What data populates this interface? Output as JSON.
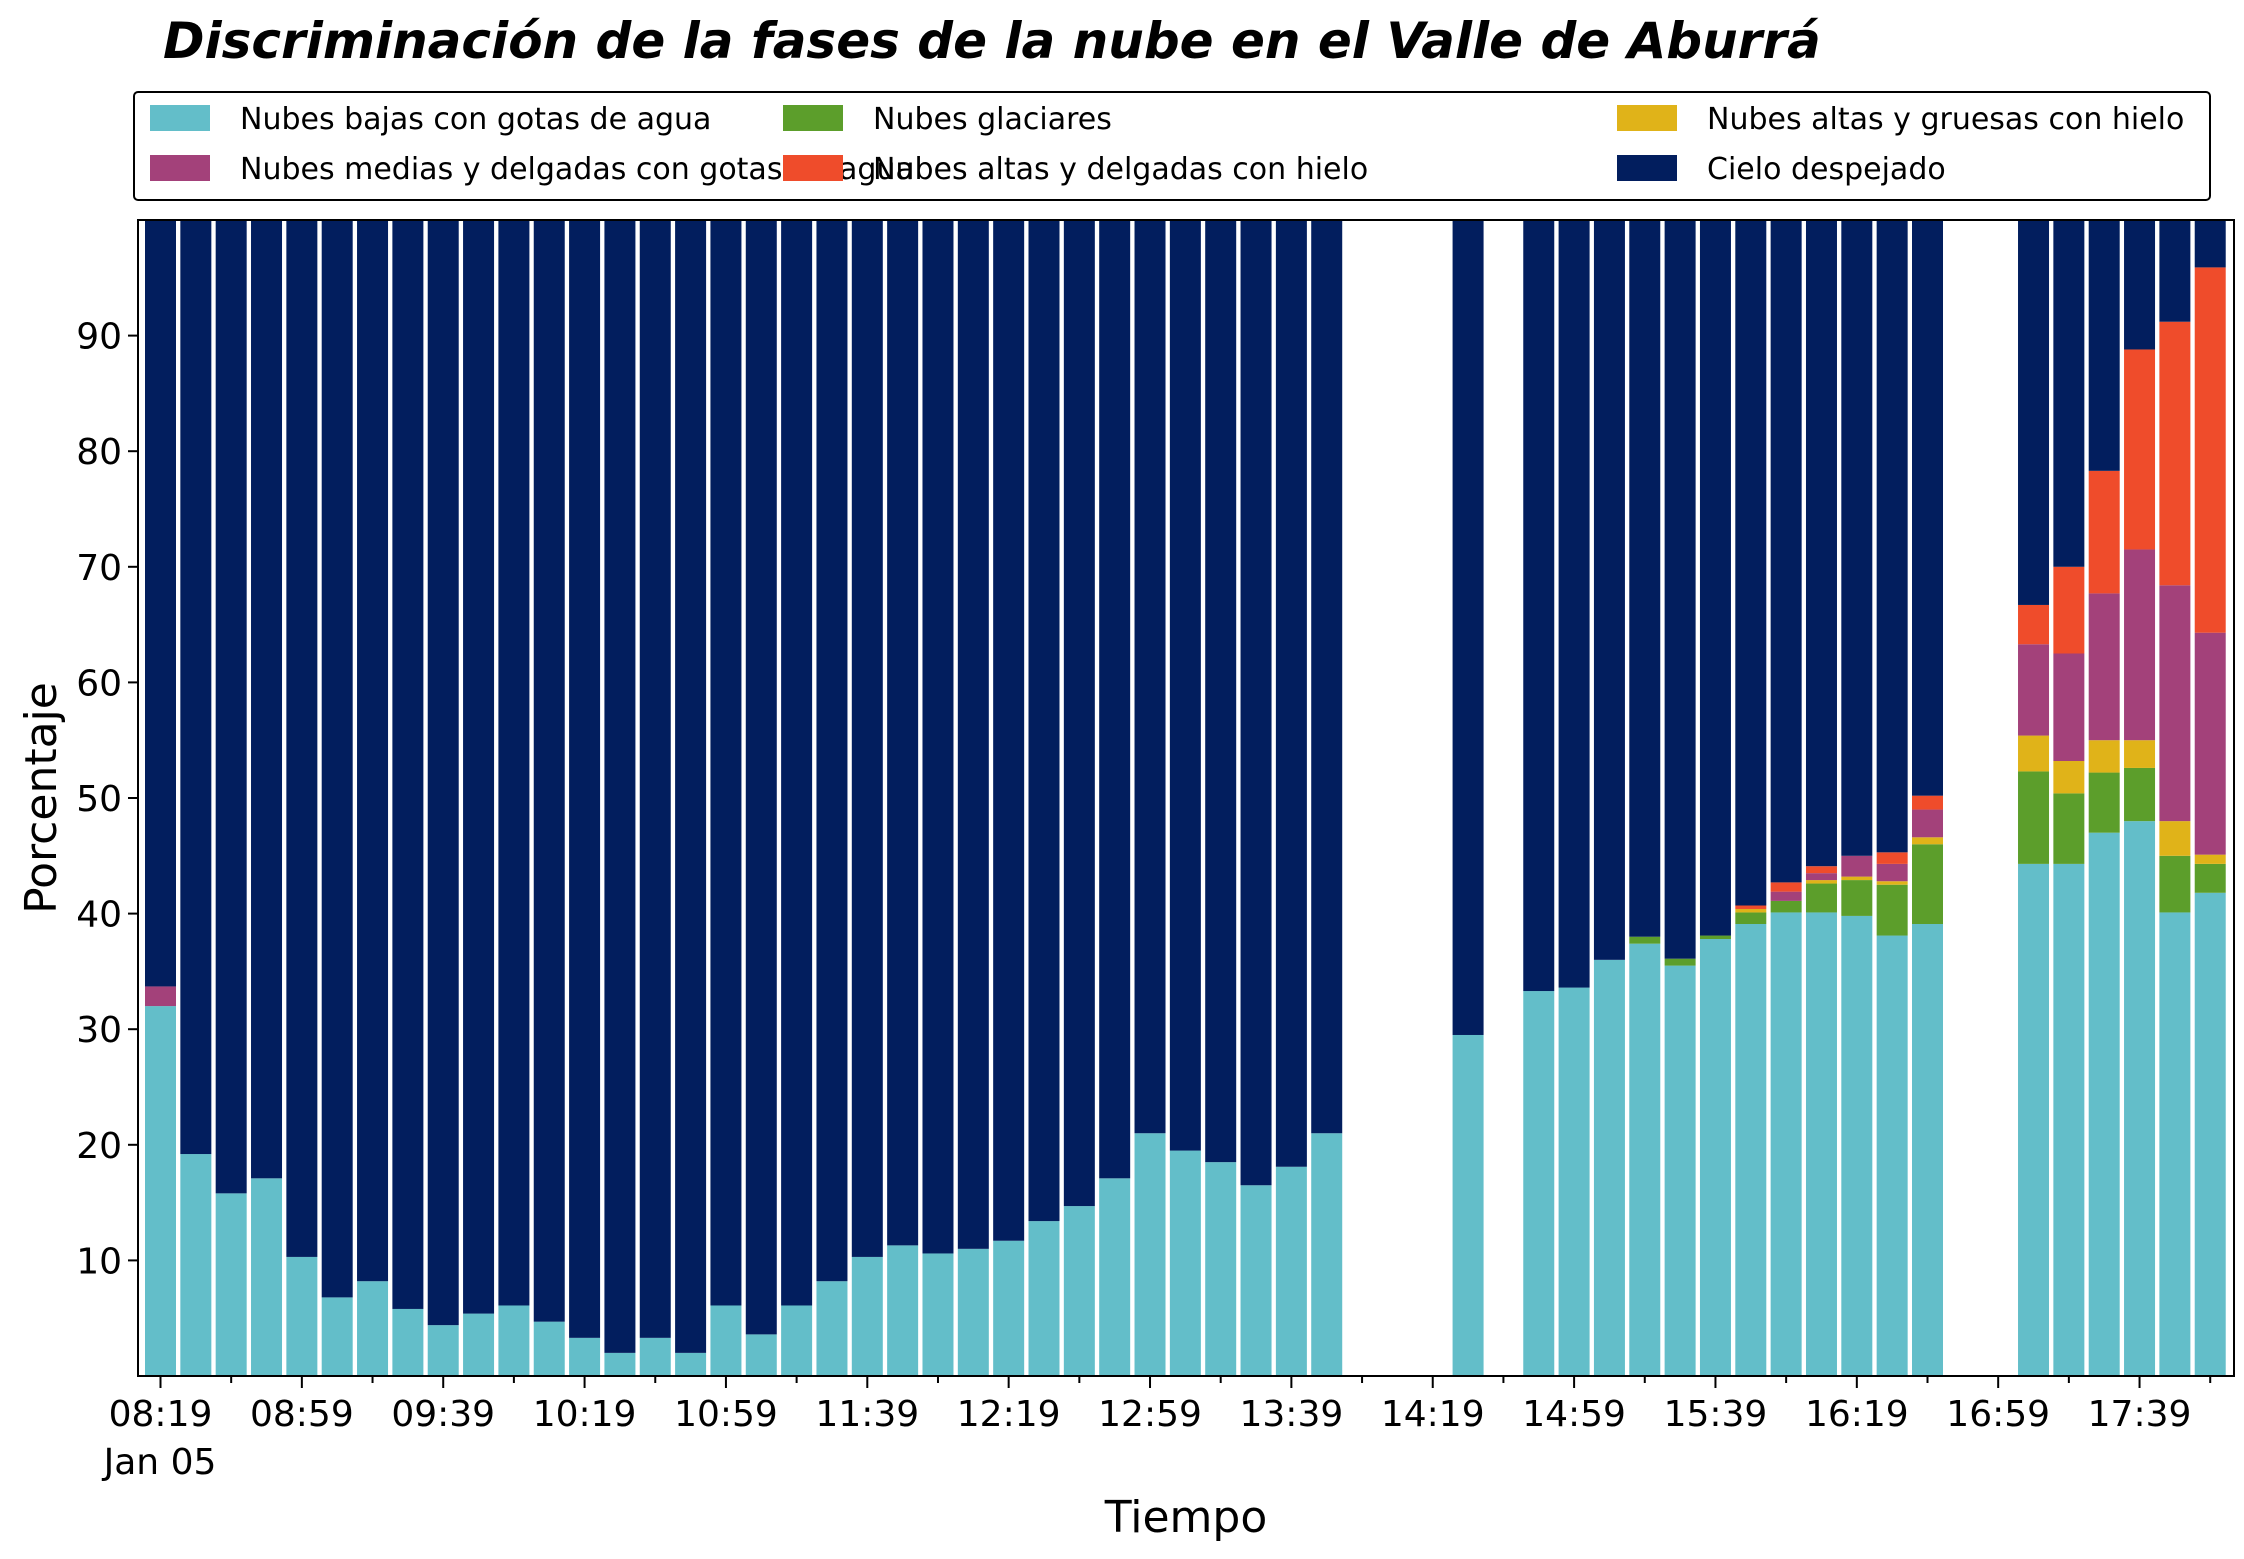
{
  "chart_data": {
    "type": "bar",
    "stacked": true,
    "title": "Discriminación de la fases de la nube en el Valle de Aburrá",
    "xlabel": "Tiempo",
    "ylabel": "Porcentaje",
    "ylim": [
      0,
      100
    ],
    "yticks": [
      10,
      20,
      30,
      40,
      50,
      60,
      70,
      80,
      90
    ],
    "x_tick_labels": [
      "08:19",
      "08:59",
      "09:39",
      "10:19",
      "10:59",
      "11:39",
      "12:19",
      "12:59",
      "13:39",
      "14:19",
      "14:59",
      "15:39",
      "16:19",
      "16:59",
      "17:39"
    ],
    "x_date_label": "Jan 05",
    "x_start": "08:19",
    "x_end": "17:59",
    "interval_minutes": 10,
    "legend_position": "top",
    "legend_columns": 3,
    "series_colors": [
      "#63bec9",
      "#5c9e2b",
      "#e0b319",
      "#a3417a",
      "#ef4c2b",
      "#021e5e"
    ],
    "series": [
      {
        "name": "Nubes bajas con gotas de agua",
        "values": [
          32.0,
          19.2,
          15.8,
          17.1,
          10.3,
          6.8,
          8.2,
          5.8,
          4.4,
          5.4,
          6.1,
          4.7,
          3.3,
          2.0,
          3.3,
          2.0,
          6.1,
          3.6,
          6.1,
          8.2,
          10.3,
          11.3,
          10.6,
          11.0,
          11.7,
          13.4,
          14.7,
          17.1,
          21.0,
          19.5,
          18.5,
          16.5,
          18.1,
          21.0,
          null,
          null,
          null,
          29.5,
          null,
          33.3,
          33.6,
          36.0,
          37.4,
          35.5,
          37.8,
          39.1,
          40.1,
          40.1,
          39.8,
          38.1,
          39.1,
          null,
          null,
          44.3,
          44.3,
          47.0,
          48.0,
          40.1,
          41.8
        ]
      },
      {
        "name": "Nubes glaciares",
        "values": [
          0,
          0,
          0,
          0,
          0,
          0,
          0,
          0,
          0,
          0,
          0,
          0,
          0,
          0,
          0,
          0,
          0,
          0,
          0,
          0,
          0,
          0,
          0,
          0,
          0,
          0,
          0,
          0,
          0,
          0,
          0,
          0,
          0,
          0,
          null,
          null,
          null,
          0,
          null,
          0,
          0,
          0,
          0.6,
          0.6,
          0.3,
          1.0,
          1.0,
          2.5,
          3.1,
          4.4,
          6.9,
          null,
          null,
          8.0,
          6.1,
          5.2,
          4.6,
          4.9,
          2.5
        ]
      },
      {
        "name": "Nubes altas y gruesas con hielo",
        "values": [
          0,
          0,
          0,
          0,
          0,
          0,
          0,
          0,
          0,
          0,
          0,
          0,
          0,
          0,
          0,
          0,
          0,
          0,
          0,
          0,
          0,
          0,
          0,
          0,
          0,
          0,
          0,
          0,
          0,
          0,
          0,
          0,
          0,
          0,
          null,
          null,
          null,
          0,
          null,
          0,
          0,
          0,
          0,
          0,
          0,
          0.3,
          0,
          0.3,
          0.3,
          0.3,
          0.6,
          null,
          null,
          3.1,
          2.8,
          2.8,
          2.4,
          3.0,
          0.8
        ]
      },
      {
        "name": "Nubes medias y delgadas con gotas de agua",
        "values": [
          1.7,
          0,
          0,
          0,
          0,
          0,
          0,
          0,
          0,
          0,
          0,
          0,
          0,
          0,
          0,
          0,
          0,
          0,
          0,
          0,
          0,
          0,
          0,
          0,
          0,
          0,
          0,
          0,
          0,
          0,
          0,
          0,
          0,
          0,
          null,
          null,
          null,
          0,
          null,
          0,
          0,
          0,
          0,
          0,
          0,
          0,
          0.8,
          0.6,
          1.8,
          1.5,
          2.4,
          null,
          null,
          7.9,
          9.3,
          12.7,
          16.5,
          20.4,
          19.2
        ]
      },
      {
        "name": "Nubes altas y delgadas con hielo",
        "values": [
          0,
          0,
          0,
          0,
          0,
          0,
          0,
          0,
          0,
          0,
          0,
          0,
          0,
          0,
          0,
          0,
          0,
          0,
          0,
          0,
          0,
          0,
          0,
          0,
          0,
          0,
          0,
          0,
          0,
          0,
          0,
          0,
          0,
          0,
          null,
          null,
          null,
          0,
          null,
          0,
          0,
          0,
          0,
          0,
          0,
          0.3,
          0.8,
          0.6,
          0,
          1.0,
          1.2,
          null,
          null,
          3.4,
          7.5,
          10.6,
          17.3,
          22.8,
          31.6
        ]
      },
      {
        "name": "Cielo despejado",
        "values": [
          66.3,
          80.8,
          84.2,
          82.9,
          89.7,
          93.2,
          91.8,
          94.2,
          95.6,
          94.6,
          93.9,
          95.3,
          96.7,
          98.0,
          96.7,
          98.0,
          93.9,
          96.4,
          93.9,
          91.8,
          89.7,
          88.7,
          89.4,
          89.0,
          88.3,
          86.6,
          85.3,
          82.9,
          79.0,
          80.5,
          81.5,
          83.5,
          81.9,
          79.0,
          null,
          null,
          null,
          70.5,
          null,
          66.7,
          66.4,
          64.0,
          62.0,
          63.9,
          61.9,
          59.3,
          57.3,
          55.9,
          55.0,
          54.7,
          49.8,
          null,
          null,
          33.3,
          30.0,
          21.7,
          11.2,
          8.8,
          4.1
        ]
      }
    ]
  }
}
